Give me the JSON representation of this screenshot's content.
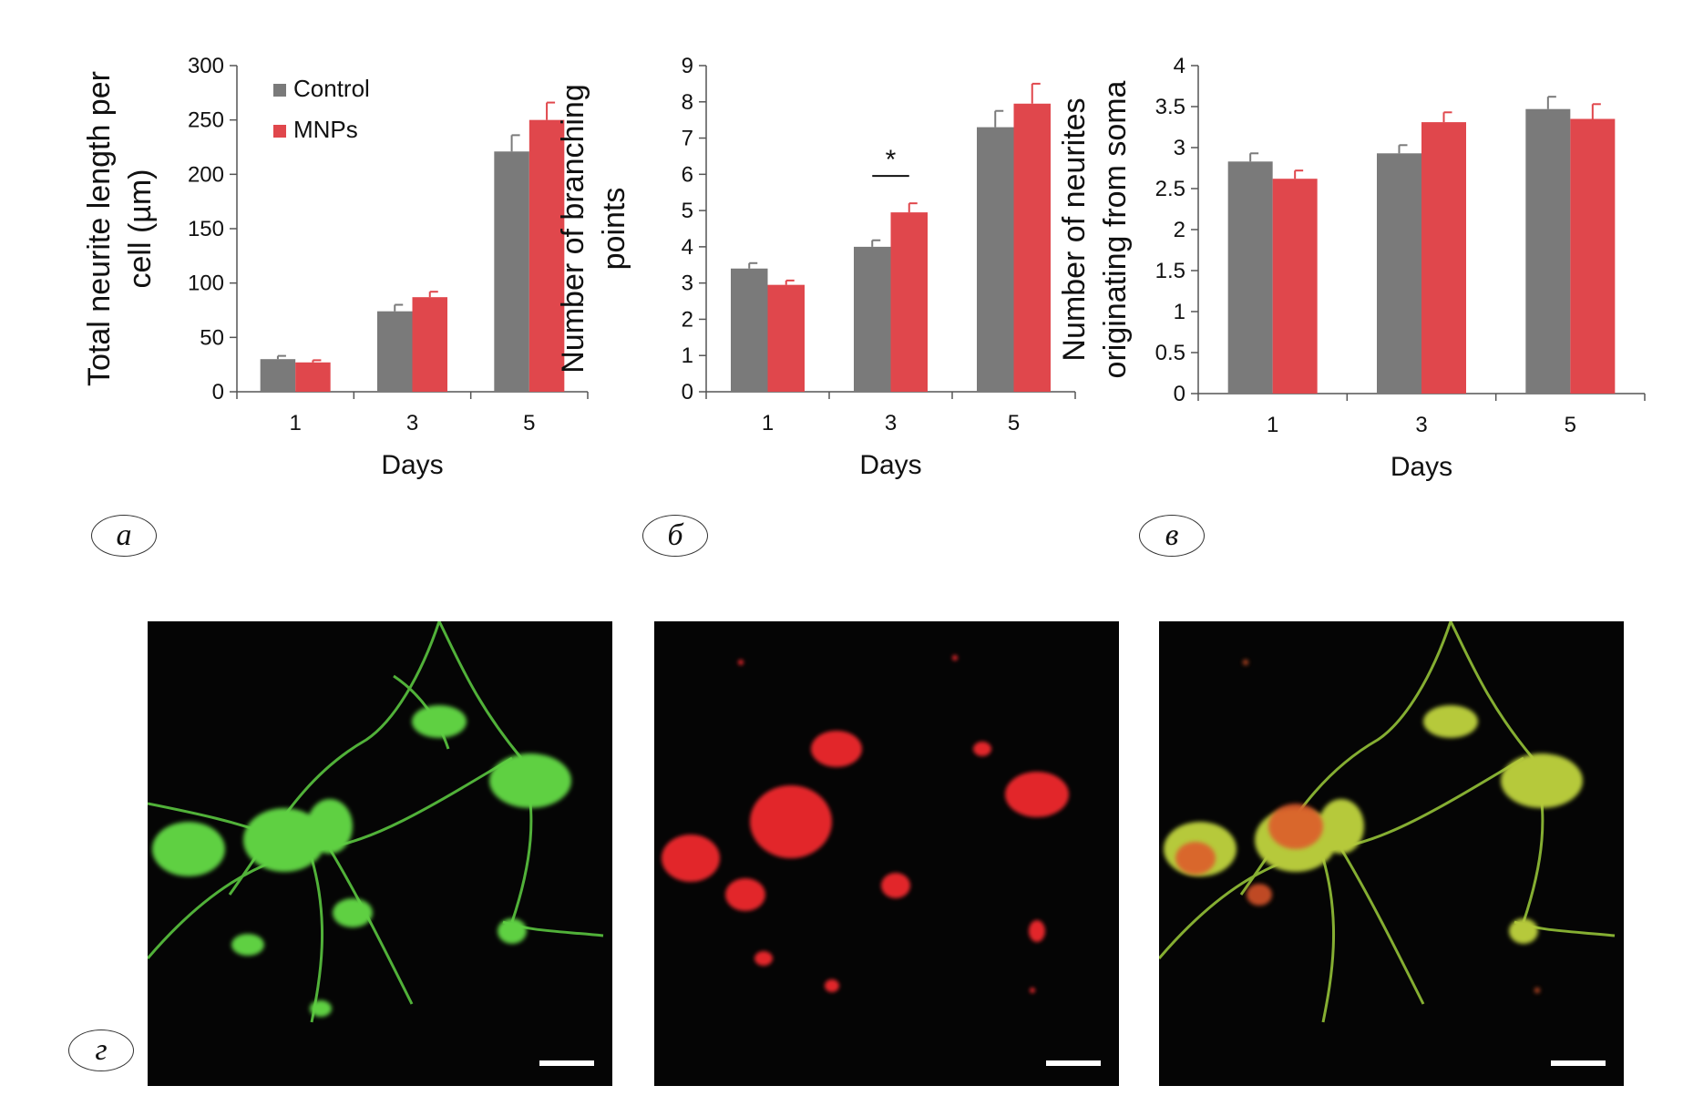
{
  "colors": {
    "control": "#7a7a7a",
    "mnps": "#e0474c",
    "axis": "#555555"
  },
  "legend": {
    "control_label": "Control",
    "mnps_label": "MNPs"
  },
  "panels": {
    "a": "а",
    "b": "б",
    "c": "в",
    "d": "г"
  },
  "chart_data": [
    {
      "type": "bar",
      "categories": [
        "1",
        "3",
        "5"
      ],
      "series": [
        {
          "name": "Control",
          "values": [
            30,
            74,
            221
          ],
          "errors": [
            3,
            6,
            15
          ]
        },
        {
          "name": "MNPs",
          "values": [
            27,
            87,
            250
          ],
          "errors": [
            2,
            5,
            16
          ]
        }
      ],
      "xlabel": "Days",
      "ylabel_lines": [
        "Total neurite length per",
        "cell (µm)"
      ],
      "ylim": [
        0,
        300
      ],
      "yticks": [
        "0",
        "50",
        "100",
        "150",
        "200",
        "250",
        "300"
      ],
      "legend_position": "top-left",
      "annotations": []
    },
    {
      "type": "bar",
      "categories": [
        "1",
        "3",
        "5"
      ],
      "series": [
        {
          "name": "Control",
          "values": [
            3.4,
            4.0,
            7.3
          ],
          "errors": [
            0.15,
            0.18,
            0.45
          ]
        },
        {
          "name": "MNPs",
          "values": [
            2.95,
            4.95,
            7.95
          ],
          "errors": [
            0.12,
            0.25,
            0.55
          ]
        }
      ],
      "xlabel": "Days",
      "ylabel_lines": [
        "Number of branching",
        "points"
      ],
      "ylim": [
        0,
        9
      ],
      "yticks": [
        "0",
        "1",
        "2",
        "3",
        "4",
        "5",
        "6",
        "7",
        "8",
        "9"
      ],
      "annotations": [
        {
          "text": "*",
          "category": "3"
        }
      ]
    },
    {
      "type": "bar",
      "categories": [
        "1",
        "3",
        "5"
      ],
      "series": [
        {
          "name": "Control",
          "values": [
            2.83,
            2.93,
            3.47
          ],
          "errors": [
            0.1,
            0.1,
            0.15
          ]
        },
        {
          "name": "MNPs",
          "values": [
            2.62,
            3.31,
            3.35
          ],
          "errors": [
            0.1,
            0.12,
            0.18
          ]
        }
      ],
      "xlabel": "Days",
      "ylabel_lines": [
        "Number of neurites",
        "originating from soma"
      ],
      "ylim": [
        0,
        4
      ],
      "yticks": [
        "0",
        "0.5",
        "1",
        "1.5",
        "2",
        "2.5",
        "3",
        "3.5",
        "4"
      ],
      "annotations": []
    }
  ]
}
